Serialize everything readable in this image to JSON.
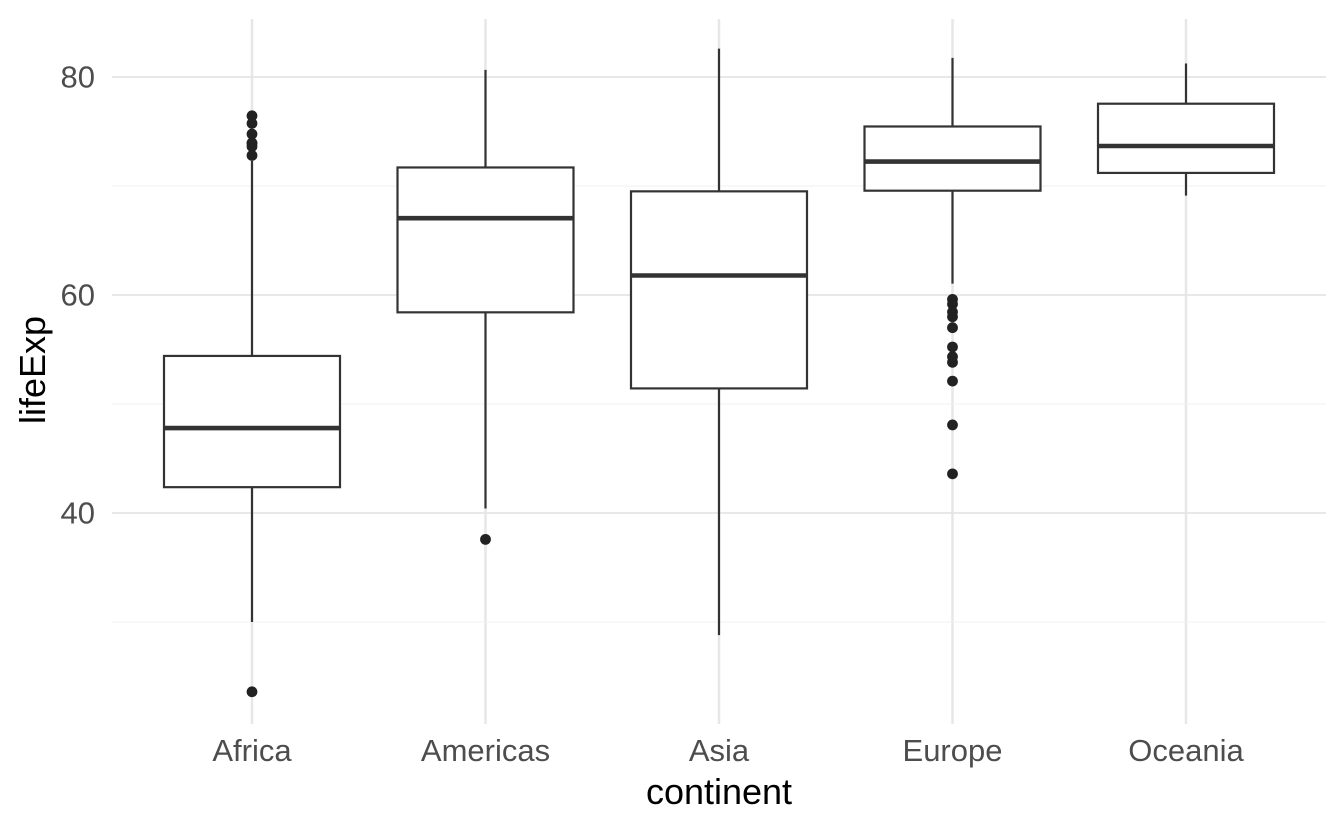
{
  "chart_data": {
    "type": "boxplot",
    "title": "",
    "xlabel": "continent",
    "ylabel": "lifeExp",
    "categories": [
      "Africa",
      "Americas",
      "Asia",
      "Europe",
      "Oceania"
    ],
    "y_axis": {
      "ticks": [
        40,
        60,
        80
      ],
      "minor_ticks": [
        30,
        50,
        70
      ],
      "domain": [
        20.6,
        85.5
      ],
      "grid": true
    },
    "legend": "none",
    "series": [
      {
        "name": "Africa",
        "whisker_low": 30.0,
        "q1": 42.37,
        "median": 47.79,
        "q3": 54.41,
        "whisker_high": 72.3,
        "outliers": [
          76.44,
          75.74,
          74.77,
          73.95,
          73.92,
          73.62,
          72.8,
          23.6
        ]
      },
      {
        "name": "Americas",
        "whisker_low": 40.41,
        "q1": 58.41,
        "median": 67.05,
        "q3": 71.7,
        "whisker_high": 80.65,
        "outliers": [
          37.58
        ]
      },
      {
        "name": "Asia",
        "whisker_low": 28.8,
        "q1": 51.43,
        "median": 61.79,
        "q3": 69.51,
        "whisker_high": 82.6,
        "outliers": []
      },
      {
        "name": "Europe",
        "whisker_low": 61.04,
        "q1": 69.57,
        "median": 72.24,
        "q3": 75.46,
        "whisker_high": 81.76,
        "outliers": [
          59.6,
          59.16,
          58.45,
          58.0,
          57.0,
          55.23,
          54.34,
          53.82,
          52.1,
          48.08,
          43.59
        ]
      },
      {
        "name": "Oceania",
        "whisker_low": 69.12,
        "q1": 71.2,
        "median": 73.67,
        "q3": 77.55,
        "whisker_high": 81.24,
        "outliers": []
      }
    ]
  },
  "colors": {
    "background": "#ffffff",
    "box_stroke": "#333333",
    "box_fill": "#ffffff",
    "outlier_fill": "#222222",
    "grid_major": "#e5e5e5",
    "grid_minor": "#f0f0f0",
    "grid_vertical": "#e7e7e7",
    "tick_label": "#4d4d4d",
    "axis_title": "#000000"
  }
}
